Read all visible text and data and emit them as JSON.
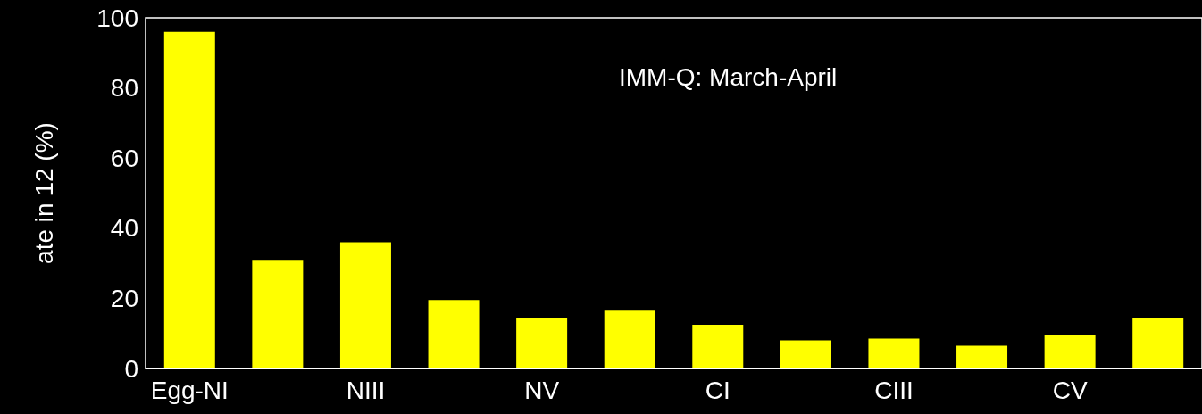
{
  "chart_data": {
    "type": "bar",
    "ylabel": "ate in 12 (%)",
    "annotations": [
      "IMM-Q: March-April"
    ],
    "categories": [
      "Egg-NI",
      null,
      "NIII",
      null,
      "NV",
      null,
      "CI",
      null,
      "CIII",
      null,
      "CV",
      null
    ],
    "values": [
      96,
      31,
      36,
      19.5,
      14.5,
      16.5,
      12.5,
      8,
      8.5,
      6.5,
      9.5,
      14.5
    ],
    "color": "#ffff00",
    "ylim": [
      0,
      100
    ],
    "yticks": [
      0,
      20,
      40,
      60,
      80,
      100
    ],
    "grid": false
  }
}
